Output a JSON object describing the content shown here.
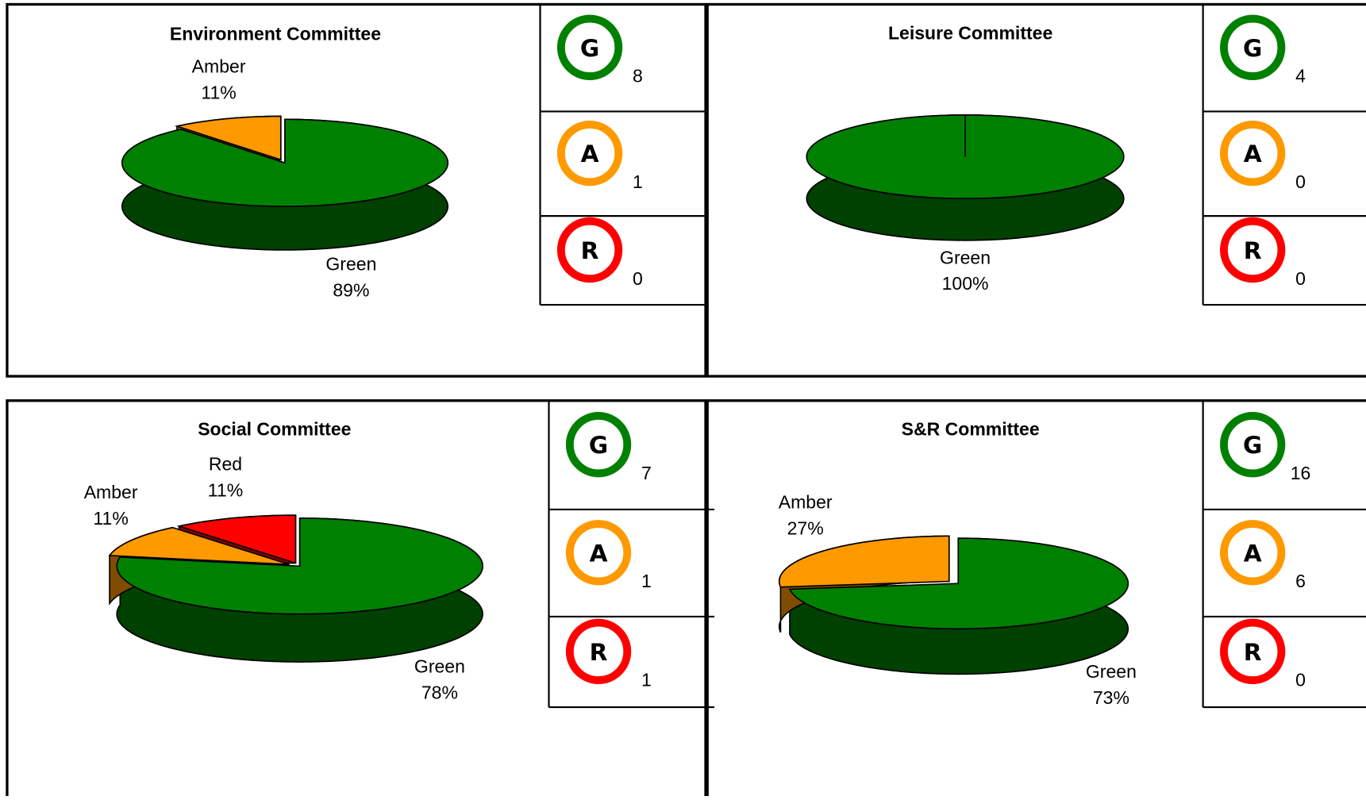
{
  "chart_data": [
    {
      "type": "pie",
      "title": "Environment Committee",
      "categories": [
        "Green",
        "Amber"
      ],
      "values": [
        89,
        11
      ],
      "value_labels": [
        "89%",
        "11%"
      ],
      "colors": [
        "#008000",
        "#ff9900"
      ],
      "status_labels": [
        "G",
        "A",
        "R"
      ],
      "status_counts": [
        8,
        1,
        0
      ],
      "status_colors": [
        "#008000",
        "#ff9900",
        "#ff0000"
      ]
    },
    {
      "type": "pie",
      "title": "Leisure Committee",
      "categories": [
        "Green"
      ],
      "values": [
        100
      ],
      "value_labels": [
        "100%"
      ],
      "colors": [
        "#008000"
      ],
      "status_labels": [
        "G",
        "A",
        "R"
      ],
      "status_counts": [
        4,
        0,
        0
      ],
      "status_colors": [
        "#008000",
        "#ff9900",
        "#ff0000"
      ]
    },
    {
      "type": "pie",
      "title": "Social Committee",
      "categories": [
        "Green",
        "Amber",
        "Red"
      ],
      "values": [
        78,
        11,
        11
      ],
      "value_labels": [
        "78%",
        "11%",
        "11%"
      ],
      "colors": [
        "#008000",
        "#ff9900",
        "#ff0000"
      ],
      "status_labels": [
        "G",
        "A",
        "R"
      ],
      "status_counts": [
        7,
        1,
        1
      ],
      "status_colors": [
        "#008000",
        "#ff9900",
        "#ff0000"
      ]
    },
    {
      "type": "pie",
      "title": "S&R Committee",
      "categories": [
        "Green",
        "Amber"
      ],
      "values": [
        73,
        27
      ],
      "value_labels": [
        "73%",
        "27%"
      ],
      "colors": [
        "#008000",
        "#ff9900"
      ],
      "status_labels": [
        "G",
        "A",
        "R"
      ],
      "status_counts": [
        16,
        6,
        0
      ],
      "status_colors": [
        "#008000",
        "#ff9900",
        "#ff0000"
      ]
    }
  ]
}
